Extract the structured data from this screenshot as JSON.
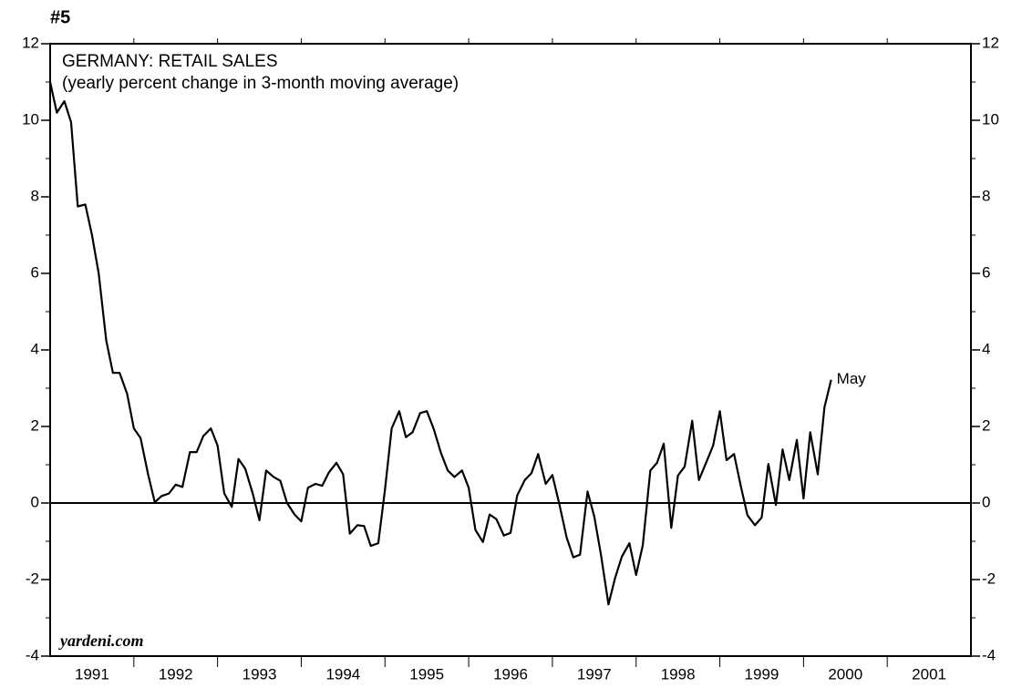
{
  "chart_data": {
    "type": "line",
    "badge": "#5",
    "title": "GERMANY: RETAIL SALES",
    "subtitle": "(yearly percent change in 3-month moving average)",
    "source": "yardeni.com",
    "annotation": "May",
    "color": "#000000",
    "xlim": [
      1991,
      2002
    ],
    "xticks": [
      {
        "value": 1991.5,
        "label": "1991"
      },
      {
        "value": 1992.5,
        "label": "1992"
      },
      {
        "value": 1993.5,
        "label": "1993"
      },
      {
        "value": 1994.5,
        "label": "1994"
      },
      {
        "value": 1995.5,
        "label": "1995"
      },
      {
        "value": 1996.5,
        "label": "1996"
      },
      {
        "value": 1997.5,
        "label": "1997"
      },
      {
        "value": 1998.5,
        "label": "1998"
      },
      {
        "value": 1999.5,
        "label": "1999"
      },
      {
        "value": 2000.5,
        "label": "2000"
      },
      {
        "value": 2001.5,
        "label": "2001"
      }
    ],
    "xticks_minor": [
      1992,
      1993,
      1994,
      1995,
      1996,
      1997,
      1998,
      1999,
      2000,
      2001
    ],
    "ylim": [
      -4,
      12
    ],
    "yticks": [
      -4,
      -2,
      0,
      2,
      4,
      6,
      8,
      10,
      12
    ],
    "yticks_minor": [
      -3,
      -1,
      1,
      3,
      5,
      7,
      9,
      11
    ],
    "y2lim": [
      -4,
      12
    ],
    "y2ticks": [
      -4,
      -2,
      0,
      2,
      4,
      6,
      8,
      10,
      12
    ],
    "x": [
      1991.0,
      1991.08,
      1991.17,
      1991.25,
      1991.33,
      1991.42,
      1991.5,
      1991.58,
      1991.67,
      1991.75,
      1991.83,
      1991.92,
      1992.0,
      1992.08,
      1992.17,
      1992.25,
      1992.33,
      1992.42,
      1992.5,
      1992.58,
      1992.67,
      1992.75,
      1992.83,
      1992.92,
      1993.0,
      1993.08,
      1993.17,
      1993.25,
      1993.33,
      1993.42,
      1993.5,
      1993.58,
      1993.67,
      1993.75,
      1993.83,
      1993.92,
      1994.0,
      1994.08,
      1994.17,
      1994.25,
      1994.33,
      1994.42,
      1994.5,
      1994.58,
      1994.67,
      1994.75,
      1994.83,
      1994.92,
      1995.0,
      1995.08,
      1995.17,
      1995.25,
      1995.33,
      1995.42,
      1995.5,
      1995.58,
      1995.67,
      1995.75,
      1995.83,
      1995.92,
      1996.0,
      1996.08,
      1996.17,
      1996.25,
      1996.33,
      1996.42,
      1996.5,
      1996.58,
      1996.67,
      1996.75,
      1996.83,
      1996.92,
      1997.0,
      1997.08,
      1997.17,
      1997.25,
      1997.33,
      1997.42,
      1997.5,
      1997.58,
      1997.67,
      1997.75,
      1997.83,
      1997.92,
      1998.0,
      1998.08,
      1998.17,
      1998.25,
      1998.33,
      1998.42,
      1998.5,
      1998.58,
      1998.67,
      1998.75,
      1998.83,
      1998.92,
      1999.0,
      1999.08,
      1999.17,
      1999.25,
      1999.33,
      1999.42,
      1999.5,
      1999.58,
      1999.67,
      1999.75,
      1999.83,
      1999.92,
      2000.0,
      2000.08,
      2000.17,
      2000.25,
      2000.33
    ],
    "values": [
      11.0,
      10.2,
      10.5,
      9.95,
      7.75,
      7.8,
      7.0,
      6.0,
      4.25,
      3.4,
      3.4,
      2.85,
      1.95,
      1.7,
      0.75,
      0.02,
      0.18,
      0.25,
      0.48,
      0.42,
      1.33,
      1.33,
      1.75,
      1.95,
      1.5,
      0.25,
      -0.1,
      1.15,
      0.9,
      0.25,
      -0.45,
      0.85,
      0.68,
      0.58,
      0.0,
      -0.3,
      -0.48,
      0.4,
      0.5,
      0.45,
      0.8,
      1.05,
      0.75,
      -0.8,
      -0.58,
      -0.6,
      -1.12,
      -1.05,
      0.35,
      1.95,
      2.4,
      1.72,
      1.85,
      2.35,
      2.4,
      1.95,
      1.3,
      0.85,
      0.68,
      0.85,
      0.4,
      -0.7,
      -1.02,
      -0.3,
      -0.42,
      -0.85,
      -0.78,
      0.2,
      0.6,
      0.78,
      1.28,
      0.5,
      0.73,
      0.0,
      -0.9,
      -1.42,
      -1.35,
      0.3,
      -0.35,
      -1.35,
      -2.65,
      -1.95,
      -1.4,
      -1.05,
      -1.88,
      -1.1,
      0.85,
      1.05,
      1.55,
      -0.65,
      0.72,
      0.95,
      2.15,
      0.6,
      1.02,
      1.5,
      2.4,
      1.12,
      1.28,
      0.45,
      -0.32,
      -0.58,
      -0.38,
      1.02,
      -0.05,
      1.4,
      0.6,
      1.65,
      0.12,
      1.85,
      0.75,
      2.5,
      3.22
    ]
  }
}
